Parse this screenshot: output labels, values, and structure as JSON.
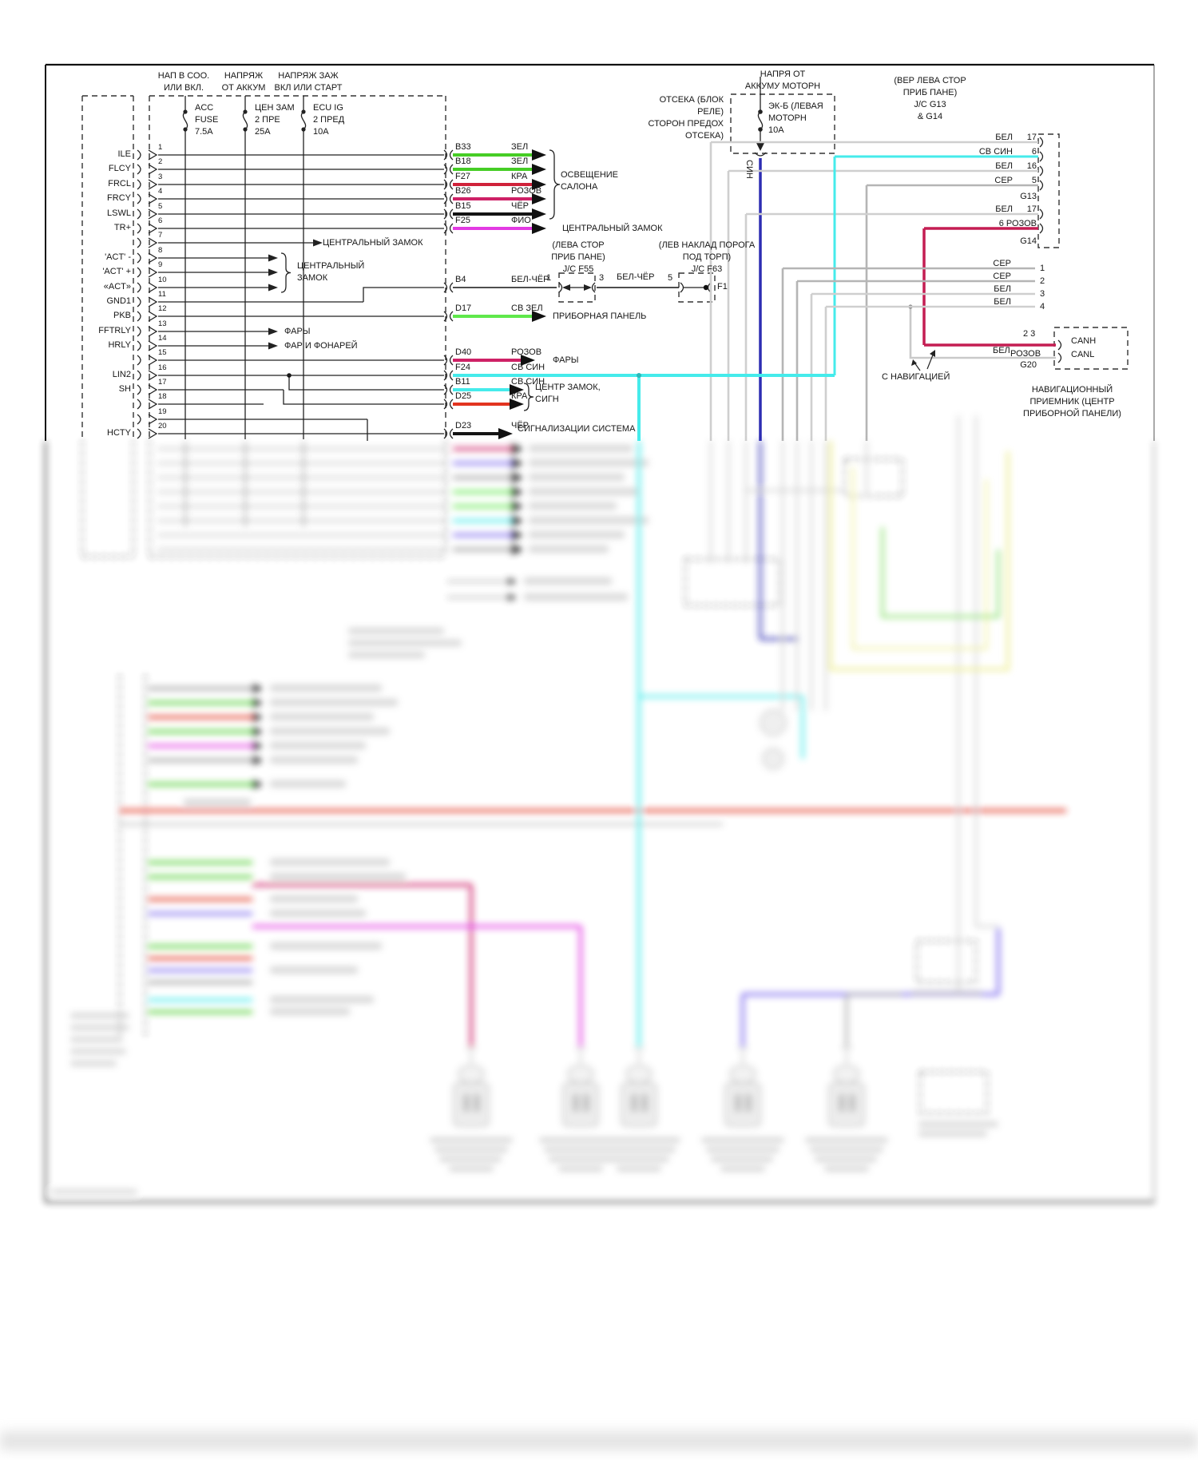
{
  "diagram": {
    "headers": {
      "acc": [
        "НАП В СОО.",
        "ИЛИ ВКЛ."
      ],
      "batt": [
        "НАПРЯЖ",
        "ОТ АККУМ"
      ],
      "ign": [
        "НАПРЯЖ ЗАЖ",
        "ВКЛ ИЛИ СТАРТ"
      ]
    },
    "fuses": {
      "acc": [
        "ACC",
        "FUSE",
        "7.5A"
      ],
      "door": [
        "ЦЕН ЗАМ",
        "2 ПРЕ",
        "25A"
      ],
      "ecu": [
        "ECU IG",
        "2 ПРЕД",
        "10A"
      ],
      "engine": [
        "ЭК-Б (ЛЕВАЯ",
        "МОТОРН",
        "10A"
      ]
    },
    "engine_power": {
      "header": [
        "НАПРЯ ОТ",
        "АККУМУ МОТОРН"
      ],
      "side": [
        "ОТСЕКА (БЛОК",
        "РЕЛЕ)",
        "СТОРОН ПРЕДОХ",
        "ОТСЕКА)"
      ],
      "wire": "СИН"
    },
    "pins": [
      {
        "n": "1",
        "label": "ILE"
      },
      {
        "n": "2",
        "label": "FLCY"
      },
      {
        "n": "3",
        "label": "FRCL"
      },
      {
        "n": "4",
        "label": "FRCY"
      },
      {
        "n": "5",
        "label": "LSWL"
      },
      {
        "n": "6",
        "label": "TR+"
      },
      {
        "n": "7",
        "label": ""
      },
      {
        "n": "8",
        "label": "'ACT' -"
      },
      {
        "n": "9",
        "label": "'ACT' +"
      },
      {
        "n": "10",
        "label": "«ACT»"
      },
      {
        "n": "11",
        "label": "GND1"
      },
      {
        "n": "12",
        "label": "PKB"
      },
      {
        "n": "13",
        "label": "FFTRLY"
      },
      {
        "n": "14",
        "label": "HRLY"
      },
      {
        "n": "15",
        "label": ""
      },
      {
        "n": "16",
        "label": "LIN2"
      },
      {
        "n": "17",
        "label": "SH"
      },
      {
        "n": "18",
        "label": ""
      },
      {
        "n": "19",
        "label": ""
      },
      {
        "n": "20",
        "label": "HCTY"
      }
    ],
    "wires": [
      {
        "id": "B33",
        "color": "ЗЕЛ"
      },
      {
        "id": "B18",
        "color": "ЗЕЛ"
      },
      {
        "id": "F27",
        "color": "КРА"
      },
      {
        "id": "B26",
        "color": "РОЗОВ"
      },
      {
        "id": "B15",
        "color": "ЧЁР"
      },
      {
        "id": "F25",
        "color": "ФИО"
      },
      {
        "id": "B4",
        "color": "БЕЛ-ЧЁР"
      },
      {
        "id": "D17",
        "color": "СВ ЗЕЛ"
      },
      {
        "id": "D40",
        "color": "РОЗОВ"
      },
      {
        "id": "F24",
        "color": "СВ СИН"
      },
      {
        "id": "B11",
        "color": "СВ СИН"
      },
      {
        "id": "D25",
        "color": "КРА"
      },
      {
        "id": "D23",
        "color": "ЧЁР"
      }
    ],
    "dest": {
      "cabin_light": [
        "ОСВЕЩЕНИЕ",
        "САЛОНА"
      ],
      "central_lock": "ЦЕНТРАЛЬНЫЙ ЗАМОК",
      "central_lock_inner": "ЦЕНТРАЛЬНЫЙ ЗАМОК",
      "central_lock_group": [
        "ЦЕНТРАЛЬНЫЙ",
        "ЗАМОК"
      ],
      "dash_panel": "ПРИБОРНАЯ ПАНЕЛЬ",
      "headlights_inner": "ФАРЫ",
      "lights_inner": "ФАР И ФОНАРЕЙ",
      "headlights": "ФАРЫ",
      "lock_horn": [
        "ЦЕНТР ЗАМОК,",
        "СИГН"
      ],
      "alarm": "СИГНАЛИЗАЦИИ СИСТЕМА"
    },
    "jc_f55": {
      "header": [
        "(ЛЕВА СТОР",
        "ПРИБ ПАНЕ)",
        "J/C F55"
      ],
      "pin_left": "1",
      "pin_right": "3",
      "wire": "БЕЛ-ЧЁР"
    },
    "jc_f63": {
      "header": [
        "(ЛЕВ НАКЛАД ПОРОГА",
        "ПОД ТОРП)",
        "J/C F63"
      ],
      "pin_left": "5",
      "end": "F1"
    },
    "jc_g13": {
      "header": [
        "(ВЕР ЛЕВА СТОР",
        "ПРИБ ПАНЕ)",
        "J/C G13",
        "& G14"
      ],
      "rows": [
        {
          "color": "БЕЛ",
          "pin": "17"
        },
        {
          "color": "СВ СИН",
          "pin": "6"
        },
        {
          "color": "БЕЛ",
          "pin": "16"
        },
        {
          "color": "СЕР",
          "pin": "5"
        },
        {
          "color": "БЕЛ",
          "pin": "17"
        }
      ],
      "row_pink": "6 РОЗОВ",
      "g13": "G13",
      "g14": "G14"
    },
    "branch_rows": [
      {
        "color": "СЕР",
        "pin": "1"
      },
      {
        "color": "СЕР",
        "pin": "2"
      },
      {
        "color": "БЕЛ",
        "pin": "3"
      },
      {
        "color": "БЕЛ",
        "pin": "4"
      }
    ],
    "nav": {
      "pins": "2 3",
      "canh": "CANH",
      "canl": "CANL",
      "g20": "G20",
      "wire_bel": "БЕЛ",
      "wire_rozov": "РОЗОВ",
      "note": "С НАВИГАЦИЕЙ",
      "receiver": [
        "НАВИГАЦИОННЫЙ",
        "ПРИЕМНИК (ЦЕНТР",
        "ПРИБОРНОЙ ПАНЕЛИ)"
      ]
    },
    "colors": {
      "zel": "#46cd25",
      "sv_zel": "#5fe84b",
      "kra": "#d0223a",
      "kra_bright": "#e23420",
      "rozov": "#ce2166",
      "fio": "#e23ae2",
      "sv_sin": "#45ebeb",
      "sin": "#2d2db2",
      "cher": "#141414",
      "bel": "#d6d6d6",
      "ser": "#b5b5b5",
      "zhel": "#ecec85"
    }
  }
}
